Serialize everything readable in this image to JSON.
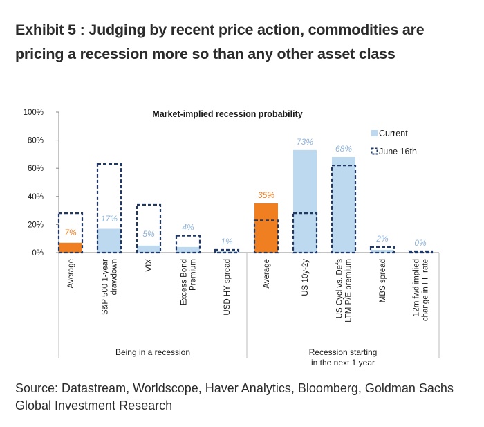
{
  "exhibit": {
    "title": "Exhibit 5 : Judging by recent price action, commodities are pricing a recession more so than any other asset class",
    "source": "Source: Datastream, Worldscope, Haver Analytics, Bloomberg, Goldman Sachs Global Investment Research"
  },
  "chart_data": {
    "type": "bar",
    "title": "Market-implied recession probability",
    "xlabel": "",
    "ylabel": "",
    "ylim": [
      0,
      100
    ],
    "yticks": [
      "0%",
      "20%",
      "40%",
      "60%",
      "80%",
      "100%"
    ],
    "grid": false,
    "legend_position": "top-right",
    "categories": [
      "Average",
      "S&P 500 1-year drawdown",
      "VIX",
      "Excess Bond Premium",
      "USD HY spread",
      "Average",
      "US 10y-2y",
      "US Cycl vs. Defs LTM P/E premium",
      "MBS spread",
      "12m fwd implied change in FF rate"
    ],
    "category_lines": [
      [
        "Average"
      ],
      [
        "S&P 500 1-year",
        "drawdown"
      ],
      [
        "VIX"
      ],
      [
        "Excess Bond",
        "Premium"
      ],
      [
        "USD HY spread"
      ],
      [
        "Average"
      ],
      [
        "US 10y-2y"
      ],
      [
        "US Cycl vs. Defs",
        "LTM P/E premium"
      ],
      [
        "MBS spread"
      ],
      [
        "12m fwd implied",
        "change in FF rate"
      ]
    ],
    "groups": [
      {
        "label_lines": [
          "Being in a recession"
        ],
        "start": 0,
        "end": 4
      },
      {
        "label_lines": [
          "Recession starting",
          "in the next 1 year"
        ],
        "start": 5,
        "end": 9
      }
    ],
    "series": [
      {
        "name": "Current",
        "values": [
          7,
          17,
          5,
          4,
          1,
          35,
          73,
          68,
          2,
          0
        ]
      },
      {
        "name": "June 16th",
        "values": [
          28,
          63,
          34,
          12,
          2,
          23,
          28,
          62,
          4,
          1
        ]
      }
    ],
    "data_labels": [
      "7%",
      "17%",
      "5%",
      "4%",
      "1%",
      "35%",
      "73%",
      "68%",
      "2%",
      "0%"
    ],
    "colors": {
      "current": "#bcd9f0",
      "average_current": "#f07f22",
      "june16_outline": "#1f3864",
      "data_label": "#8fb3d9",
      "axis": "#888888"
    }
  }
}
